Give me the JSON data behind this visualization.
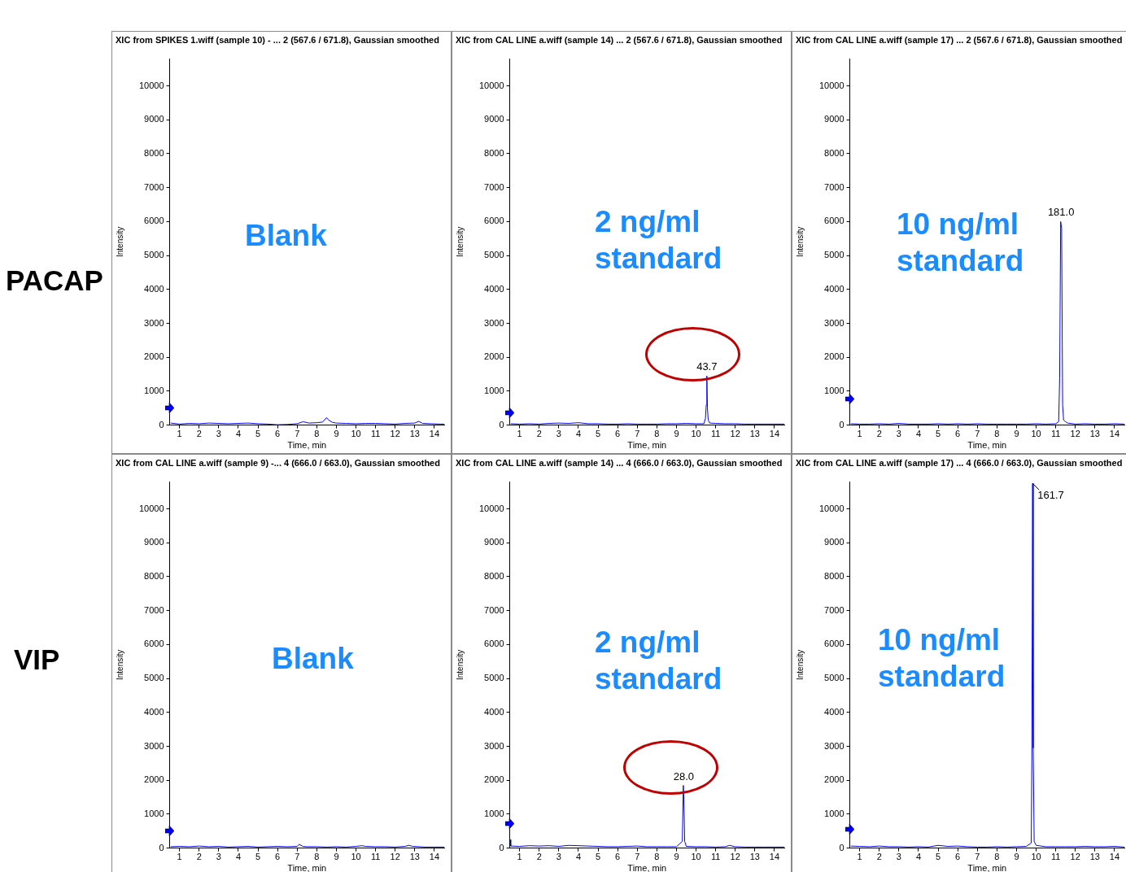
{
  "chart_data": [
    {
      "type": "line",
      "title": "XIC from SPIKES 1.wiff (sample 10) - ... 2 (567.6 / 671.8), Gaussian smoothed",
      "xlabel": "Time, min",
      "ylabel": "Intensity",
      "xlim": [
        0.5,
        14.5
      ],
      "xticks": [
        1,
        2,
        3,
        4,
        5,
        6,
        7,
        8,
        9,
        10,
        11,
        12,
        13,
        14
      ],
      "ylim": [
        0,
        10800
      ],
      "yticks": [
        0,
        1000,
        2000,
        3000,
        4000,
        5000,
        6000,
        7000,
        8000,
        9000,
        10000
      ],
      "grid": false,
      "legend": false,
      "annotations": [
        "Blank",
        "PACAP"
      ],
      "series": [
        {
          "color": "#0000ff",
          "x": [
            0.55,
            1,
            1.5,
            2,
            2.5,
            3,
            3.5,
            4,
            4.5,
            5,
            5.5,
            6,
            6.5,
            7,
            7.3,
            7.6,
            8,
            8.3,
            8.5,
            8.6,
            8.8,
            9,
            9.5,
            10,
            10.5,
            11,
            11.5,
            12,
            12.5,
            13,
            13.2,
            13.4,
            13.8,
            14.3,
            14.5
          ],
          "values": [
            60,
            30,
            50,
            40,
            60,
            50,
            40,
            50,
            60,
            40,
            30,
            10,
            20,
            40,
            100,
            60,
            70,
            90,
            220,
            150,
            80,
            60,
            50,
            40,
            50,
            50,
            40,
            30,
            50,
            60,
            110,
            50,
            40,
            30,
            30
          ]
        }
      ]
    },
    {
      "type": "line",
      "title": "XIC from CAL LINE a.wiff (sample 14) ... 2 (567.6 / 671.8), Gaussian smoothed",
      "xlabel": "Time, min",
      "ylabel": "Intensity",
      "xlim": [
        0.5,
        14.5
      ],
      "xticks": [
        1,
        2,
        3,
        4,
        5,
        6,
        7,
        8,
        9,
        10,
        11,
        12,
        13,
        14
      ],
      "ylim": [
        0,
        10800
      ],
      "yticks": [
        0,
        1000,
        2000,
        3000,
        4000,
        5000,
        6000,
        7000,
        8000,
        9000,
        10000
      ],
      "grid": false,
      "legend": false,
      "annotations": [
        "2 ng/ml standard",
        {
          "text": "43.7",
          "x": 10.55,
          "y": 1450
        }
      ],
      "series": [
        {
          "color": "#0000ff",
          "x": [
            0.55,
            1,
            1.5,
            2,
            2.5,
            3,
            3.5,
            4,
            4.5,
            5,
            5.5,
            6,
            6.5,
            7,
            7.5,
            8,
            8.5,
            9,
            9.5,
            10,
            10.4,
            10.48,
            10.52,
            10.55,
            10.58,
            10.62,
            10.7,
            11,
            11.5,
            12,
            12.5,
            13,
            13.5,
            14,
            14.5
          ],
          "values": [
            40,
            30,
            40,
            30,
            50,
            60,
            50,
            70,
            40,
            40,
            30,
            30,
            40,
            30,
            30,
            30,
            40,
            40,
            50,
            40,
            40,
            200,
            600,
            1450,
            500,
            150,
            60,
            50,
            40,
            40,
            30,
            30,
            30,
            30,
            30
          ]
        }
      ]
    },
    {
      "type": "line",
      "title": "XIC from CAL LINE a.wiff (sample 17) ... 2 (567.6 / 671.8), Gaussian smoothed",
      "xlabel": "Time, min",
      "ylabel": "Intensity",
      "xlim": [
        0.5,
        14.5
      ],
      "xticks": [
        1,
        2,
        3,
        4,
        5,
        6,
        7,
        8,
        9,
        10,
        11,
        12,
        13,
        14
      ],
      "ylim": [
        0,
        10800
      ],
      "yticks": [
        0,
        1000,
        2000,
        3000,
        4000,
        5000,
        6000,
        7000,
        8000,
        9000,
        10000
      ],
      "grid": false,
      "legend": false,
      "annotations": [
        "10 ng/ml standard",
        {
          "text": "181.0",
          "x": 11.27,
          "y": 6000
        }
      ],
      "series": [
        {
          "color": "#0000ff",
          "x": [
            0.55,
            1,
            1.5,
            2,
            2.5,
            3,
            3.5,
            4,
            4.5,
            5,
            5.5,
            6,
            6.5,
            7,
            7.5,
            8,
            8.5,
            9,
            9.5,
            10,
            10.5,
            11,
            11.15,
            11.2,
            11.25,
            11.3,
            11.35,
            11.4,
            11.5,
            11.6,
            12,
            12.5,
            13,
            13.5,
            14,
            14.5
          ],
          "values": [
            40,
            30,
            30,
            40,
            30,
            50,
            30,
            30,
            30,
            40,
            30,
            40,
            30,
            40,
            30,
            30,
            30,
            30,
            30,
            40,
            30,
            40,
            100,
            1400,
            6000,
            5800,
            600,
            150,
            100,
            60,
            30,
            40,
            30,
            30,
            40,
            30
          ]
        }
      ]
    },
    {
      "type": "line",
      "title": "XIC from CAL LINE a.wiff (sample 9) -... 4 (666.0 / 663.0), Gaussian smoothed",
      "xlabel": "Time, min",
      "ylabel": "Intensity",
      "xlim": [
        0.5,
        14.5
      ],
      "xticks": [
        1,
        2,
        3,
        4,
        5,
        6,
        7,
        8,
        9,
        10,
        11,
        12,
        13,
        14
      ],
      "ylim": [
        0,
        10800
      ],
      "yticks": [
        0,
        1000,
        2000,
        3000,
        4000,
        5000,
        6000,
        7000,
        8000,
        9000,
        10000
      ],
      "grid": false,
      "legend": false,
      "annotations": [
        "Blank",
        "VIP"
      ],
      "series": [
        {
          "color": "#0000ff",
          "x": [
            0.55,
            1,
            1.5,
            2,
            2.5,
            3,
            3.5,
            4,
            4.5,
            5,
            5.5,
            6,
            6.5,
            7,
            7.1,
            7.3,
            7.5,
            8,
            8.5,
            9,
            9.5,
            10,
            10.3,
            10.5,
            11,
            11.5,
            12,
            12.5,
            12.7,
            12.9,
            13.5,
            14,
            14.5
          ],
          "values": [
            40,
            50,
            40,
            60,
            40,
            50,
            30,
            40,
            50,
            30,
            40,
            50,
            40,
            50,
            110,
            50,
            40,
            40,
            30,
            40,
            30,
            50,
            70,
            50,
            40,
            40,
            30,
            50,
            80,
            50,
            30,
            30,
            30
          ]
        }
      ]
    },
    {
      "type": "line",
      "title": "XIC from CAL LINE a.wiff (sample 14) ... 4 (666.0 / 663.0), Gaussian smoothed",
      "xlabel": "Time, min",
      "ylabel": "Intensity",
      "xlim": [
        0.5,
        14.5
      ],
      "xticks": [
        1,
        2,
        3,
        4,
        5,
        6,
        7,
        8,
        9,
        10,
        11,
        12,
        13,
        14
      ],
      "ylim": [
        0,
        10800
      ],
      "yticks": [
        0,
        1000,
        2000,
        3000,
        4000,
        5000,
        6000,
        7000,
        8000,
        9000,
        10000
      ],
      "grid": false,
      "legend": false,
      "annotations": [
        "2 ng/ml standard",
        {
          "text": "28.0",
          "x": 9.37,
          "y": 1850
        }
      ],
      "series": [
        {
          "color": "#0000ff",
          "x": [
            0.52,
            0.55,
            1,
            1.5,
            2,
            2.5,
            3,
            3.5,
            4,
            4.5,
            5,
            5.5,
            6,
            6.5,
            7,
            7.5,
            8,
            8.5,
            9,
            9.3,
            9.35,
            9.38,
            9.42,
            9.5,
            10,
            10.5,
            11,
            11.5,
            11.7,
            12,
            12.5,
            13,
            13.5,
            14,
            14.5
          ],
          "values": [
            250,
            60,
            50,
            70,
            60,
            70,
            50,
            80,
            70,
            60,
            50,
            40,
            40,
            50,
            60,
            40,
            40,
            40,
            40,
            200,
            1850,
            1450,
            200,
            50,
            40,
            40,
            30,
            40,
            80,
            40,
            30,
            30,
            30,
            30,
            30
          ]
        }
      ]
    },
    {
      "type": "line",
      "title": "XIC from CAL LINE a.wiff (sample 17) ... 4 (666.0 / 663.0), Gaussian smoothed",
      "xlabel": "Time, min",
      "ylabel": "Intensity",
      "xlim": [
        0.5,
        14.5
      ],
      "xticks": [
        1,
        2,
        3,
        4,
        5,
        6,
        7,
        8,
        9,
        10,
        11,
        12,
        13,
        14
      ],
      "ylim": [
        0,
        10800
      ],
      "yticks": [
        0,
        1000,
        2000,
        3000,
        4000,
        5000,
        6000,
        7000,
        8000,
        9000,
        10000
      ],
      "grid": false,
      "legend": false,
      "annotations": [
        "10 ng/ml standard",
        {
          "text": "161.7",
          "x": 9.82,
          "y": 10750
        }
      ],
      "series": [
        {
          "color": "#0000ff",
          "x": [
            0.55,
            1,
            1.5,
            2,
            2.5,
            3,
            3.5,
            4,
            4.5,
            5,
            5.5,
            6,
            6.5,
            7,
            7.5,
            8,
            8.5,
            9,
            9.5,
            9.75,
            9.78,
            9.82,
            9.85,
            9.9,
            10,
            10.5,
            11,
            11.5,
            12,
            12.5,
            13,
            13.5,
            14,
            14.5
          ],
          "values": [
            60,
            50,
            40,
            60,
            40,
            40,
            30,
            40,
            30,
            80,
            50,
            60,
            40,
            30,
            30,
            40,
            30,
            40,
            50,
            150,
            2550,
            10750,
            2950,
            200,
            80,
            40,
            40,
            40,
            40,
            50,
            40,
            40,
            50,
            30
          ]
        }
      ]
    }
  ]
}
